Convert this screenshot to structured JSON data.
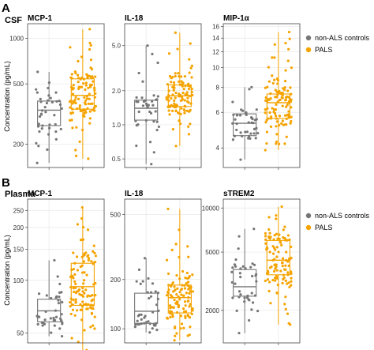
{
  "panels": [
    {
      "letter": "A",
      "title": "CSF"
    },
    {
      "letter": "B",
      "title": "Plasma"
    }
  ],
  "y_axis_label": "Concentration (pg/mL)",
  "legend": [
    {
      "name": "non-ALS controls",
      "color": "#767676"
    },
    {
      "name": "PALS",
      "color": "#f5a300"
    }
  ],
  "chart_data": [
    {
      "type": "box",
      "title": "MCP-1",
      "group": "CSF",
      "scale": "log",
      "ylim": [
        140,
        1250
      ],
      "yticks": [
        200,
        500,
        1000
      ],
      "tick_labels": [
        "200",
        "500",
        "1000"
      ],
      "series": [
        {
          "name": "non-ALS controls",
          "n": 40,
          "min": 150,
          "q1": 265,
          "median": 335,
          "q3": 385,
          "max": 600
        },
        {
          "name": "PALS",
          "n": 110,
          "min": 160,
          "q1": 340,
          "median": 420,
          "q3": 540,
          "max": 1150
        }
      ]
    },
    {
      "type": "box",
      "title": "IL-18",
      "group": "CSF",
      "scale": "log",
      "ylim": [
        0.42,
        7.8
      ],
      "yticks": [
        0.5,
        1.0,
        2.0,
        5.0
      ],
      "tick_labels": [
        "0.5",
        "1.0",
        "2.0",
        "5.0"
      ],
      "series": [
        {
          "name": "non-ALS controls",
          "n": 40,
          "min": 0.45,
          "q1": 1.1,
          "median": 1.4,
          "q3": 1.65,
          "max": 5.0
        },
        {
          "name": "PALS",
          "n": 110,
          "min": 0.65,
          "q1": 1.45,
          "median": 1.8,
          "q3": 2.25,
          "max": 6.5
        }
      ]
    },
    {
      "type": "box",
      "title": "MIP-1α",
      "group": "CSF",
      "scale": "log",
      "ylim": [
        3.2,
        16.5
      ],
      "yticks": [
        4,
        6,
        8,
        10,
        12,
        14,
        16
      ],
      "tick_labels": [
        "4",
        "6",
        "8",
        "10",
        "12",
        "14",
        "16"
      ],
      "series": [
        {
          "name": "non-ALS controls",
          "n": 40,
          "min": 3.5,
          "q1": 4.6,
          "median": 5.3,
          "q3": 5.9,
          "max": 8.0
        },
        {
          "name": "PALS",
          "n": 110,
          "min": 3.9,
          "q1": 5.6,
          "median": 6.7,
          "q3": 7.4,
          "max": 15.0
        }
      ]
    },
    {
      "type": "box",
      "title": "MCP-1",
      "group": "Plasma",
      "scale": "log",
      "ylim": [
        44,
        290
      ],
      "yticks": [
        50,
        100,
        150,
        200,
        250
      ],
      "tick_labels": [
        "50",
        "100",
        "150",
        "200",
        "250"
      ],
      "series": [
        {
          "name": "non-ALS controls",
          "n": 40,
          "min": 48,
          "q1": 58,
          "median": 67,
          "q3": 78,
          "max": 130
        },
        {
          "name": "PALS",
          "n": 110,
          "min": 40,
          "q1": 72,
          "median": 92,
          "q3": 125,
          "max": 260
        }
      ]
    },
    {
      "type": "box",
      "title": "IL-18",
      "group": "Plasma",
      "scale": "log",
      "ylim": [
        82,
        620
      ],
      "yticks": [
        100,
        200,
        500
      ],
      "tick_labels": [
        "100",
        "200",
        "500"
      ],
      "series": [
        {
          "name": "non-ALS controls",
          "n": 40,
          "min": 95,
          "q1": 108,
          "median": 128,
          "q3": 165,
          "max": 270
        },
        {
          "name": "PALS",
          "n": 110,
          "min": 85,
          "q1": 125,
          "median": 155,
          "q3": 185,
          "max": 540
        }
      ]
    },
    {
      "type": "box",
      "title": "sTREM2",
      "group": "Plasma",
      "scale": "log",
      "ylim": [
        1200,
        11500
      ],
      "yticks": [
        2000,
        5000,
        10000
      ],
      "tick_labels": [
        "2000",
        "5000",
        "10000"
      ],
      "series": [
        {
          "name": "non-ALS controls",
          "n": 40,
          "min": 1400,
          "q1": 2500,
          "median": 2900,
          "q3": 3800,
          "max": 7200
        },
        {
          "name": "PALS",
          "n": 110,
          "min": 1600,
          "q1": 3500,
          "median": 4400,
          "q3": 6000,
          "max": 10200
        }
      ]
    }
  ]
}
